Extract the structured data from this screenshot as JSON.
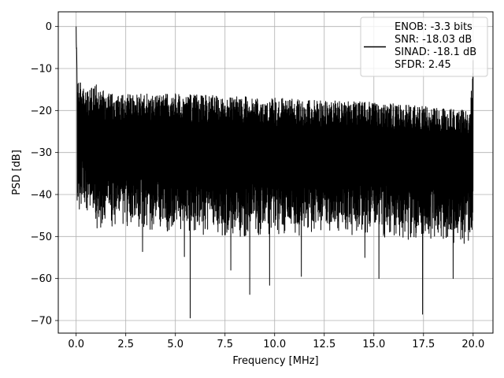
{
  "chart_data": {
    "type": "line",
    "title": "",
    "xlabel": "Frequency [MHz]",
    "ylabel": "PSD [dB]",
    "xlim": [
      -0.9,
      21.0
    ],
    "ylim": [
      -73,
      3.5
    ],
    "xticks": [
      0.0,
      2.5,
      5.0,
      7.5,
      10.0,
      12.5,
      15.0,
      17.5,
      20.0
    ],
    "xtick_labels": [
      "0.0",
      "2.5",
      "5.0",
      "7.5",
      "10.0",
      "12.5",
      "15.0",
      "17.5",
      "20.0"
    ],
    "yticks": [
      0,
      -10,
      -20,
      -30,
      -40,
      -50,
      -60,
      -70
    ],
    "ytick_labels": [
      "0",
      "−10",
      "−20",
      "−30",
      "−40",
      "−50",
      "−60",
      "−70"
    ],
    "grid": true,
    "line_color": "#000000",
    "legend_position": "upper-right",
    "legend_lines": [
      "ENOB: -3.3 bits",
      "SNR: -18.03 dB",
      "SINAD: -18.1 dB",
      "SFDR: 2.45"
    ],
    "series": [
      {
        "x_range": [
          0,
          20
        ],
        "upper_envelope": [
          [
            0.0,
            0
          ],
          [
            0.05,
            -8
          ],
          [
            0.15,
            -13
          ],
          [
            0.5,
            -15
          ],
          [
            1.0,
            -13
          ],
          [
            1.5,
            -16
          ],
          [
            2.5,
            -16
          ],
          [
            5.0,
            -16
          ],
          [
            7.5,
            -16.5
          ],
          [
            10.0,
            -17
          ],
          [
            12.5,
            -17.5
          ],
          [
            15.0,
            -18
          ],
          [
            17.5,
            -19
          ],
          [
            19.8,
            -20
          ],
          [
            20.0,
            -8
          ]
        ],
        "lower_envelope": [
          [
            0.0,
            -43
          ],
          [
            0.3,
            -40
          ],
          [
            1.0,
            -45
          ],
          [
            2.5,
            -45
          ],
          [
            5.0,
            -46
          ],
          [
            7.5,
            -47
          ],
          [
            10.0,
            -47
          ],
          [
            12.5,
            -47
          ],
          [
            15.0,
            -47
          ],
          [
            17.5,
            -48
          ],
          [
            20.0,
            -49
          ]
        ],
        "notable_dips": [
          [
            3.35,
            -53.6
          ],
          [
            5.45,
            -54.8
          ],
          [
            5.75,
            -69.4
          ],
          [
            7.8,
            -58
          ],
          [
            8.75,
            -63.8
          ],
          [
            9.75,
            -61.6
          ],
          [
            11.35,
            -59.5
          ],
          [
            14.55,
            -55
          ],
          [
            15.25,
            -60
          ],
          [
            17.45,
            -68.5
          ],
          [
            19.0,
            -60
          ]
        ]
      }
    ]
  }
}
